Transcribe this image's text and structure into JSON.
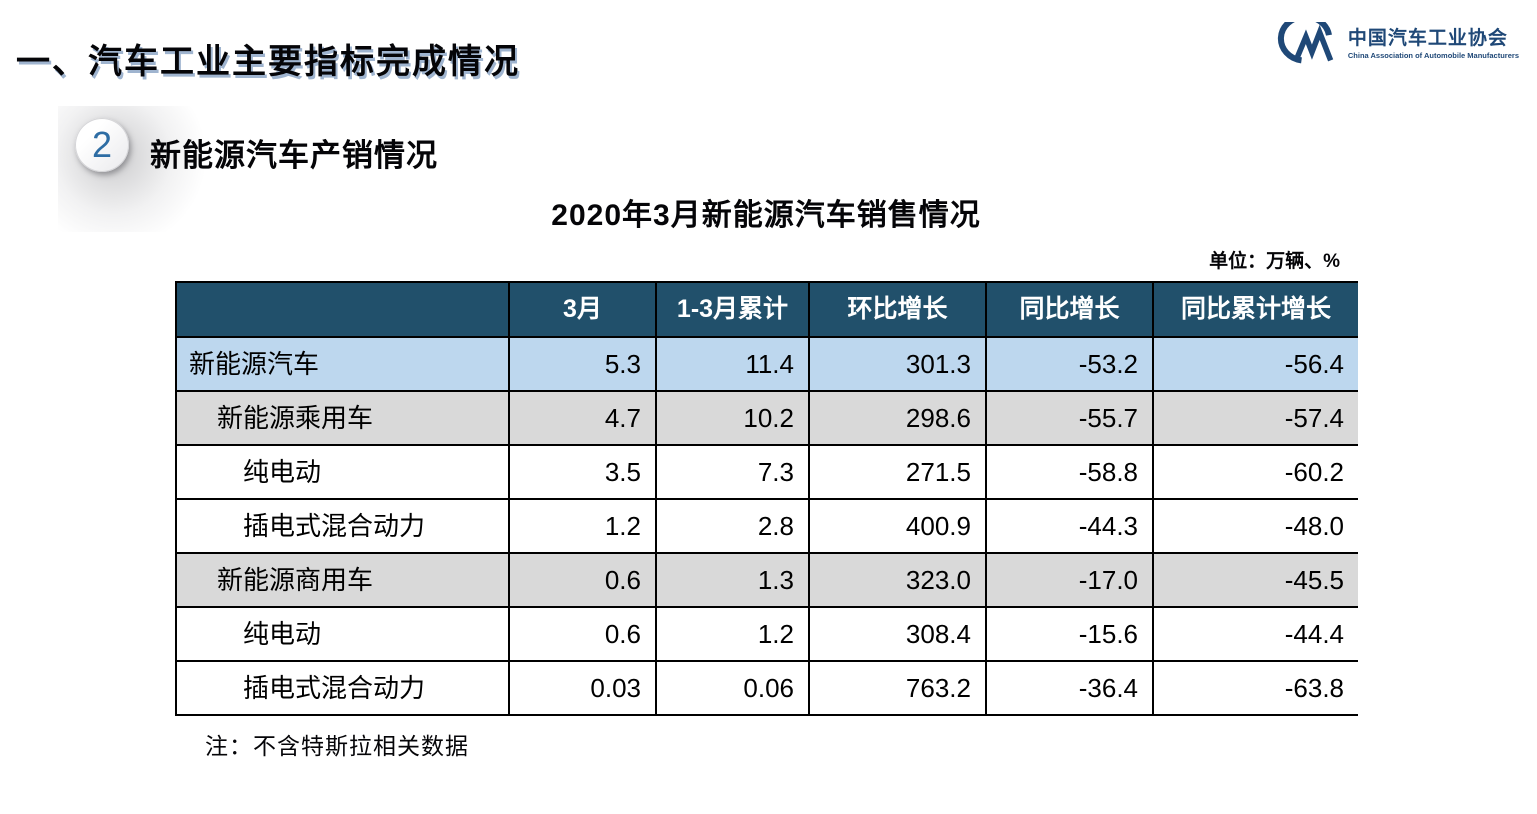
{
  "page": {
    "title": "一、汽车工业主要指标完成情况"
  },
  "logo": {
    "name_cn": "中国汽车工业协会",
    "name_en": "China Association of Automobile Manufacturers"
  },
  "section": {
    "number": "2",
    "heading": "新能源汽车产销情况"
  },
  "table": {
    "title": "2020年3月新能源汽车销售情况",
    "unit_label": "单位：万辆、%",
    "columns": [
      "",
      "3月",
      "1-3月累计",
      "环比增长",
      "同比增长",
      "同比累计增长"
    ],
    "rows": [
      {
        "label": "新能源汽车",
        "indent": 0,
        "style": "blue",
        "values": [
          "5.3",
          "11.4",
          "301.3",
          "-53.2",
          "-56.4"
        ]
      },
      {
        "label": "新能源乘用车",
        "indent": 1,
        "style": "gray",
        "values": [
          "4.7",
          "10.2",
          "298.6",
          "-55.7",
          "-57.4"
        ]
      },
      {
        "label": "纯电动",
        "indent": 2,
        "style": "white",
        "values": [
          "3.5",
          "7.3",
          "271.5",
          "-58.8",
          "-60.2"
        ]
      },
      {
        "label": "插电式混合动力",
        "indent": 2,
        "style": "white",
        "values": [
          "1.2",
          "2.8",
          "400.9",
          "-44.3",
          "-48.0"
        ]
      },
      {
        "label": "新能源商用车",
        "indent": 1,
        "style": "gray",
        "values": [
          "0.6",
          "1.3",
          "323.0",
          "-17.0",
          "-45.5"
        ]
      },
      {
        "label": "纯电动",
        "indent": 2,
        "style": "white",
        "values": [
          "0.6",
          "1.2",
          "308.4",
          "-15.6",
          "-44.4"
        ]
      },
      {
        "label": "插电式混合动力",
        "indent": 2,
        "style": "white",
        "values": [
          "0.03",
          "0.06",
          "763.2",
          "-36.4",
          "-63.8"
        ]
      }
    ],
    "note": "注：不含特斯拉相关数据"
  },
  "colors": {
    "header_bg": "#21506B",
    "row_blue": "#BDD7EE",
    "row_gray": "#D9D9D9",
    "accent_blue": "#1F4877"
  }
}
